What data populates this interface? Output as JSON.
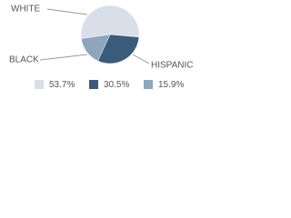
{
  "chart_data": {
    "type": "pie",
    "categories": [
      "WHITE",
      "HISPANIC",
      "BLACK"
    ],
    "values": [
      53.7,
      30.5,
      15.9
    ],
    "value_labels": [
      "53.7%",
      "30.5%",
      "15.9%"
    ],
    "colors": [
      "#d8dfe8",
      "#3b5b7a",
      "#8ea6bc"
    ]
  }
}
